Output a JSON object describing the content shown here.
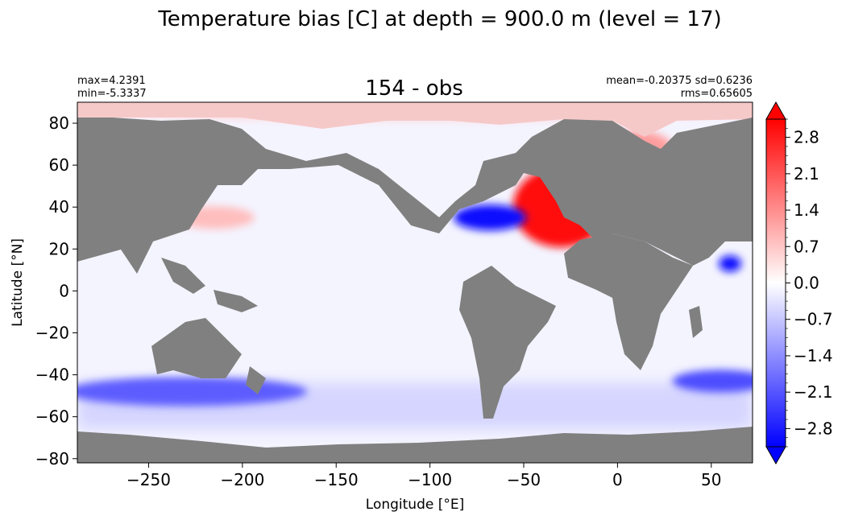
{
  "figure": {
    "suptitle": "Temperature bias [C] at depth = 900.0 m (level = 17)"
  },
  "chart_data": {
    "type": "heatmap",
    "title": "154 - obs",
    "stats": {
      "max": "max=4.2391",
      "min": "min=-5.3337",
      "mean_sd": "mean=-0.20375 sd=0.6236",
      "rms": "rms=0.65605"
    },
    "xlabel": "Longitude [°E]",
    "ylabel": "Latitude [°N]",
    "xlim": [
      -288,
      72
    ],
    "ylim": [
      -82,
      90
    ],
    "xticks": [
      -250,
      -200,
      -150,
      -100,
      -50,
      0,
      50
    ],
    "xtick_labels": [
      "−250",
      "−200",
      "−150",
      "−100",
      "−50",
      "0",
      "50"
    ],
    "yticks": [
      80,
      60,
      40,
      20,
      0,
      -20,
      -40,
      -60,
      -80
    ],
    "ytick_labels": [
      "80",
      "60",
      "40",
      "20",
      "0",
      "−20",
      "−40",
      "−60",
      "−80"
    ],
    "colorbar": {
      "vmin": -3.15,
      "vmax": 3.15,
      "ticks": [
        2.8,
        2.1,
        1.4,
        0.7,
        0.0,
        -0.7,
        -1.4,
        -2.1,
        -2.8
      ],
      "tick_labels": [
        "2.8",
        "2.1",
        "1.4",
        "0.7",
        "0.0",
        "−0.7",
        "−1.4",
        "−2.1",
        "−2.8"
      ],
      "cmap": "bwr",
      "extend": "both"
    },
    "colors": {
      "land": "#808080",
      "ocean_neutral": "#f4f4ff",
      "positive": "#ff0000",
      "negative": "#0000ff"
    },
    "bias_regions": [
      {
        "name": "north-atlantic",
        "lon": -30,
        "lat": 40,
        "value": 3.0
      },
      {
        "name": "nordic-seas",
        "lon": 10,
        "lat": 68,
        "value": 1.2
      },
      {
        "name": "gulf-stream",
        "lon": -68,
        "lat": 35,
        "value": -3.0
      },
      {
        "name": "southern-ocean-pacific",
        "lon": -230,
        "lat": -48,
        "value": -2.0
      },
      {
        "name": "southern-ocean-indian",
        "lon": 55,
        "lat": -43,
        "value": -2.2
      },
      {
        "name": "arabian-sea",
        "lon": 60,
        "lat": 13,
        "value": -3.0
      },
      {
        "name": "kuroshio",
        "lon": -215,
        "lat": 35,
        "value": 0.8
      },
      {
        "name": "arctic",
        "lon": -100,
        "lat": 86,
        "value": 0.5
      }
    ]
  }
}
